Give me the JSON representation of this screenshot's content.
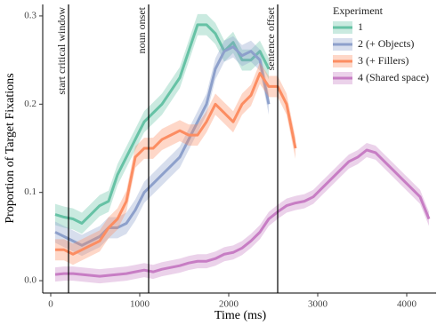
{
  "chart_data": {
    "type": "line",
    "xlabel": "Time (ms)",
    "ylabel": "Proportion of Target Fixations",
    "legend_title": "Experiment",
    "legend_position": "top-right",
    "xlim": [
      -90,
      4330
    ],
    "ylim": [
      -0.014,
      0.313
    ],
    "xticks": [
      0,
      1000,
      2000,
      3000,
      4000
    ],
    "yticks": [
      {
        "value": 0,
        "label": "0.0"
      },
      0.1,
      0.2,
      0.3
    ],
    "annotations": [
      {
        "x": 200,
        "label": "start critical window"
      },
      {
        "x": 1100,
        "label": "noun onset"
      },
      {
        "x": 2550,
        "label": "sentence offset"
      }
    ],
    "series": [
      {
        "name": "1",
        "color": "#66c2a5",
        "ci": 0.012,
        "x": [
          50,
          150,
          250,
          350,
          450,
          550,
          650,
          750,
          850,
          950,
          1050,
          1150,
          1250,
          1350,
          1450,
          1550,
          1650,
          1750,
          1850,
          1950,
          2050,
          2150,
          2250,
          2350,
          2450
        ],
        "values": [
          0.075,
          0.072,
          0.07,
          0.065,
          0.075,
          0.085,
          0.09,
          0.12,
          0.14,
          0.16,
          0.18,
          0.19,
          0.2,
          0.215,
          0.23,
          0.26,
          0.29,
          0.29,
          0.28,
          0.26,
          0.27,
          0.25,
          0.25,
          0.26,
          0.24
        ]
      },
      {
        "name": "2 (+ Objects)",
        "color": "#8da0cb",
        "ci": 0.012,
        "x": [
          50,
          150,
          250,
          350,
          450,
          550,
          650,
          750,
          850,
          950,
          1050,
          1150,
          1250,
          1350,
          1450,
          1550,
          1650,
          1750,
          1850,
          1950,
          2050,
          2150,
          2250,
          2350,
          2450
        ],
        "values": [
          0.055,
          0.05,
          0.045,
          0.04,
          0.045,
          0.05,
          0.06,
          0.06,
          0.065,
          0.08,
          0.1,
          0.11,
          0.12,
          0.13,
          0.14,
          0.16,
          0.18,
          0.2,
          0.24,
          0.26,
          0.265,
          0.255,
          0.26,
          0.25,
          0.2
        ]
      },
      {
        "name": "3 (+ Fillers)",
        "color": "#fc8d62",
        "ci": 0.012,
        "x": [
          50,
          150,
          250,
          350,
          450,
          550,
          650,
          750,
          850,
          950,
          1050,
          1150,
          1250,
          1350,
          1450,
          1550,
          1650,
          1750,
          1850,
          1950,
          2050,
          2150,
          2250,
          2350,
          2450,
          2550,
          2650,
          2750
        ],
        "values": [
          0.035,
          0.035,
          0.03,
          0.035,
          0.04,
          0.045,
          0.06,
          0.07,
          0.09,
          0.14,
          0.15,
          0.15,
          0.16,
          0.165,
          0.17,
          0.165,
          0.165,
          0.18,
          0.2,
          0.19,
          0.18,
          0.2,
          0.21,
          0.235,
          0.22,
          0.22,
          0.2,
          0.15
        ]
      },
      {
        "name": "4 (Shared space)",
        "color": "#c77dc4",
        "ci": 0.008,
        "x": [
          50,
          150,
          250,
          350,
          450,
          550,
          650,
          750,
          850,
          950,
          1050,
          1150,
          1250,
          1350,
          1450,
          1550,
          1650,
          1750,
          1850,
          1950,
          2050,
          2150,
          2250,
          2350,
          2450,
          2550,
          2650,
          2750,
          2850,
          2950,
          3050,
          3150,
          3250,
          3350,
          3450,
          3550,
          3650,
          3750,
          3850,
          3950,
          4050,
          4150,
          4250
        ],
        "values": [
          0.007,
          0.008,
          0.008,
          0.007,
          0.006,
          0.005,
          0.006,
          0.007,
          0.008,
          0.01,
          0.012,
          0.01,
          0.013,
          0.015,
          0.017,
          0.02,
          0.022,
          0.022,
          0.025,
          0.03,
          0.032,
          0.037,
          0.045,
          0.055,
          0.07,
          0.078,
          0.085,
          0.088,
          0.09,
          0.095,
          0.105,
          0.115,
          0.125,
          0.135,
          0.14,
          0.148,
          0.145,
          0.135,
          0.125,
          0.115,
          0.105,
          0.095,
          0.07
        ]
      }
    ]
  }
}
